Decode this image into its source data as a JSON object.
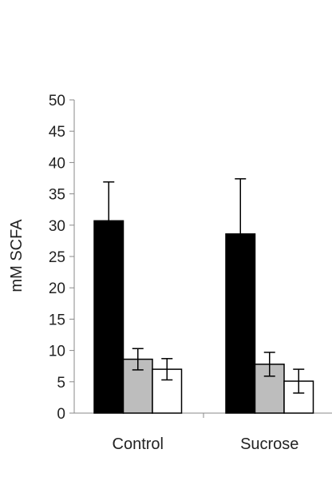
{
  "chart_data": {
    "type": "bar",
    "categories": [
      "Control",
      "Sucrose"
    ],
    "series": [
      {
        "fill": "#000000",
        "values": [
          30.7,
          28.6
        ],
        "error": [
          6.2,
          8.8
        ]
      },
      {
        "fill": "#bdbdbd",
        "values": [
          8.6,
          7.8
        ],
        "error": [
          1.7,
          1.9
        ]
      },
      {
        "fill": "#ffffff",
        "values": [
          7.0,
          5.1
        ],
        "error": [
          1.7,
          1.9
        ]
      }
    ],
    "ylabel": "mM SCFA",
    "ylim": [
      0,
      50
    ],
    "yticks": [
      "0",
      "5",
      "10",
      "15",
      "20",
      "25",
      "30",
      "35",
      "40",
      "45",
      "50"
    ],
    "grid": false,
    "legend": "none"
  }
}
